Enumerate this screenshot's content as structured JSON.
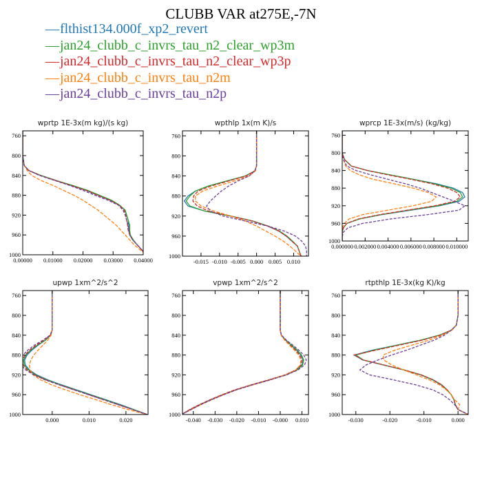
{
  "title": "CLUBB VAR at275E,-7N",
  "legend": [
    {
      "label": "flthist134.000f_xp2_revert",
      "color": "#1f77b4"
    },
    {
      "label": "jan24_clubb_c_invrs_tau_n2_clear_wp3m",
      "color": "#2ca02c"
    },
    {
      "label": "jan24_clubb_c_invrs_tau_n2_clear_wp3p",
      "color": "#d62728"
    },
    {
      "label": "jan24_clubb_c_invrs_tau_n2m",
      "color": "#ff7f0e"
    },
    {
      "label": "jan24_clubb_c_invrs_tau_n2p",
      "color": "#6a3d9a"
    }
  ],
  "chart_data": [
    {
      "type": "line",
      "title": "wprtp  1E-3x(m kg)/(s kg)",
      "xlim": [
        0,
        0.04
      ],
      "ylim": [
        1000,
        750
      ],
      "xticks": [
        0,
        0.01,
        0.02,
        0.03,
        0.04
      ],
      "xtick_labels": [
        "0.00000",
        "0.01000",
        "0.02000",
        "0.03000",
        "0.04000"
      ],
      "yticks": [
        760,
        800,
        840,
        880,
        920,
        960,
        1000
      ],
      "ytick_labels": [
        "760",
        "800",
        "840",
        "880",
        "920",
        "960",
        "1000"
      ],
      "y": [
        750,
        800,
        820,
        830,
        840,
        850,
        860,
        870,
        880,
        890,
        900,
        910,
        920,
        930,
        940,
        950,
        960,
        970,
        980,
        990,
        1000
      ],
      "series": [
        {
          "values": [
            0,
            0,
            0.0005,
            0.002,
            0.006,
            0.011,
            0.016,
            0.021,
            0.025,
            0.029,
            0.032,
            0.034,
            0.0345,
            0.035,
            0.0352,
            0.0352,
            0.0355,
            0.0365,
            0.038,
            0.0395,
            0.041
          ]
        },
        {
          "values": [
            0,
            0,
            0.0005,
            0.002,
            0.006,
            0.011,
            0.0165,
            0.0215,
            0.0255,
            0.0295,
            0.0322,
            0.034,
            0.0345,
            0.035,
            0.0355,
            0.0355,
            0.0357,
            0.0367,
            0.038,
            0.0395,
            0.041
          ]
        },
        {
          "values": [
            0,
            0,
            0.0005,
            0.002,
            0.0058,
            0.0108,
            0.016,
            0.021,
            0.025,
            0.029,
            0.032,
            0.0337,
            0.0342,
            0.0345,
            0.0348,
            0.035,
            0.0355,
            0.0365,
            0.038,
            0.0395,
            0.041
          ]
        },
        {
          "values": [
            0,
            0,
            0.0005,
            0.0015,
            0.003,
            0.006,
            0.01,
            0.0135,
            0.017,
            0.02,
            0.0225,
            0.025,
            0.027,
            0.029,
            0.031,
            0.0325,
            0.034,
            0.0355,
            0.037,
            0.039,
            0.041
          ]
        },
        {
          "values": [
            0,
            0,
            0.0005,
            0.002,
            0.0055,
            0.0105,
            0.0155,
            0.02,
            0.024,
            0.0283,
            0.0318,
            0.0333,
            0.034,
            0.0345,
            0.035,
            0.0352,
            0.0355,
            0.0365,
            0.038,
            0.0395,
            0.041
          ]
        }
      ]
    },
    {
      "type": "line",
      "title": "wpthlp  1x(m K)/s",
      "xlim": [
        -0.02,
        0.014
      ],
      "ylim": [
        1000,
        750
      ],
      "xticks": [
        -0.015,
        -0.01,
        -0.005,
        0,
        0.005,
        0.01
      ],
      "xtick_labels": [
        "-0.015",
        "-0.010",
        "-0.005",
        "0.000",
        "0.005",
        "0.010"
      ],
      "yticks": [
        760,
        800,
        840,
        880,
        920,
        960,
        1000
      ],
      "ytick_labels": [
        "760",
        "800",
        "840",
        "880",
        "920",
        "960",
        "1000"
      ],
      "y": [
        750,
        800,
        820,
        830,
        840,
        850,
        860,
        870,
        880,
        890,
        900,
        910,
        920,
        930,
        940,
        950,
        960,
        970,
        980,
        990,
        1000
      ],
      "series": [
        {
          "values": [
            0,
            0,
            0,
            -0.0005,
            -0.003,
            -0.008,
            -0.013,
            -0.0165,
            -0.0185,
            -0.0195,
            -0.0185,
            -0.014,
            -0.007,
            -0.001,
            0.003,
            0.006,
            0.008,
            0.0095,
            0.011,
            0.0115,
            0.012
          ]
        },
        {
          "values": [
            0,
            0,
            0,
            -0.0005,
            -0.003,
            -0.008,
            -0.013,
            -0.0165,
            -0.018,
            -0.019,
            -0.018,
            -0.014,
            -0.007,
            -0.001,
            0.0032,
            0.0062,
            0.0082,
            0.0097,
            0.011,
            0.0115,
            0.012
          ]
        },
        {
          "values": [
            0,
            0,
            0,
            -0.0005,
            -0.0028,
            -0.0075,
            -0.0122,
            -0.0158,
            -0.017,
            -0.0172,
            -0.016,
            -0.013,
            -0.007,
            -0.0012,
            0.003,
            0.006,
            0.008,
            0.0095,
            0.011,
            0.0115,
            0.012
          ]
        },
        {
          "values": [
            0,
            0,
            0,
            -0.0003,
            -0.002,
            -0.006,
            -0.0105,
            -0.0145,
            -0.0165,
            -0.0165,
            -0.015,
            -0.0115,
            -0.007,
            -0.003,
            0,
            0.0025,
            0.005,
            0.0072,
            0.009,
            0.0105,
            0.012
          ]
        },
        {
          "values": [
            0,
            0,
            0,
            -0.0005,
            -0.002,
            -0.005,
            -0.0075,
            -0.0095,
            -0.011,
            -0.0125,
            -0.0135,
            -0.0125,
            -0.009,
            -0.003,
            0.003,
            0.0075,
            0.0105,
            0.0122,
            0.0132,
            0.0135,
            0.0135
          ]
        }
      ]
    },
    {
      "type": "line",
      "title": "wprcp  1E-3x(m/s) (kg/kg)",
      "xlim": [
        0,
        0.011
      ],
      "ylim": [
        1000,
        750
      ],
      "xticks": [
        0,
        0.002,
        0.004,
        0.006,
        0.008,
        0.01
      ],
      "xtick_labels": [
        "0.000000",
        "0.002000",
        "0.004000",
        "0.006000",
        "0.008000",
        "0.010000"
      ],
      "yticks": [
        760,
        800,
        840,
        880,
        920,
        960,
        1000
      ],
      "ytick_labels": [
        "760",
        "800",
        "840",
        "880",
        "920",
        "960",
        "1000"
      ],
      "y": [
        750,
        800,
        815,
        830,
        840,
        850,
        860,
        870,
        880,
        890,
        900,
        910,
        920,
        930,
        940,
        950,
        960,
        970,
        980,
        990,
        1000
      ],
      "series": [
        {
          "values": [
            0,
            0,
            0.0002,
            0.0008,
            0.0022,
            0.0042,
            0.0062,
            0.0082,
            0.0097,
            0.0105,
            0.0107,
            0.0102,
            0.0085,
            0.006,
            0.0035,
            0.0015,
            0.0004,
            0.0001,
            0,
            0,
            0
          ]
        },
        {
          "values": [
            0,
            0,
            0.0002,
            0.0008,
            0.0022,
            0.0042,
            0.0062,
            0.008,
            0.0095,
            0.0103,
            0.0105,
            0.01,
            0.0083,
            0.0058,
            0.0034,
            0.0015,
            0.0004,
            0.0001,
            0,
            0,
            0
          ]
        },
        {
          "values": [
            0,
            0,
            0.0002,
            0.0008,
            0.0022,
            0.004,
            0.006,
            0.0078,
            0.0092,
            0.01,
            0.0103,
            0.0098,
            0.0081,
            0.0057,
            0.0033,
            0.0014,
            0.0004,
            0.0001,
            0,
            0,
            0
          ]
        },
        {
          "values": [
            0,
            0,
            0.0001,
            0.0003,
            0.0007,
            0.0015,
            0.0027,
            0.0045,
            0.0062,
            0.0075,
            0.0082,
            0.0078,
            0.0062,
            0.004,
            0.0018,
            0.0006,
            0.0002,
            0,
            0,
            0,
            0
          ]
        },
        {
          "values": [
            0,
            0,
            0.0001,
            0.0004,
            0.0012,
            0.0025,
            0.004,
            0.0055,
            0.0068,
            0.0078,
            0.0088,
            0.0098,
            0.0107,
            0.0102,
            0.0075,
            0.0042,
            0.0018,
            0.0005,
            0.0001,
            0,
            0
          ]
        }
      ]
    },
    {
      "type": "line",
      "title": "upwp  1xm^2/s^2",
      "xlim": [
        -0.008,
        0.026
      ],
      "ylim": [
        1000,
        750
      ],
      "xticks": [
        0,
        0.01,
        0.02
      ],
      "xtick_labels": [
        "0.000",
        "0.010",
        "0.020"
      ],
      "yticks": [
        760,
        800,
        840,
        880,
        920,
        960,
        1000
      ],
      "ytick_labels": [
        "760",
        "800",
        "840",
        "880",
        "920",
        "960",
        "1000"
      ],
      "y": [
        750,
        800,
        830,
        840,
        850,
        860,
        870,
        880,
        890,
        900,
        910,
        920,
        930,
        940,
        950,
        960,
        970,
        980,
        990,
        1000
      ],
      "series": [
        {
          "values": [
            0,
            0,
            0,
            -0.0004,
            -0.0018,
            -0.0038,
            -0.0055,
            -0.0068,
            -0.0075,
            -0.0073,
            -0.0062,
            -0.0042,
            -0.0012,
            0.0025,
            0.0065,
            0.0105,
            0.0145,
            0.0185,
            0.0222,
            0.0258
          ]
        },
        {
          "values": [
            0,
            0,
            0,
            -0.0004,
            -0.0019,
            -0.004,
            -0.0058,
            -0.0071,
            -0.0078,
            -0.0076,
            -0.0065,
            -0.0045,
            -0.0015,
            0.0022,
            0.0062,
            0.0102,
            0.0142,
            0.0182,
            0.022,
            0.0258
          ]
        },
        {
          "values": [
            0,
            0,
            0,
            -0.0005,
            -0.0022,
            -0.0043,
            -0.0061,
            -0.0074,
            -0.0081,
            -0.0079,
            -0.0068,
            -0.0048,
            -0.0018,
            0.0019,
            0.0059,
            0.0099,
            0.0139,
            0.0179,
            0.0218,
            0.0258
          ]
        },
        {
          "values": [
            0,
            0,
            0,
            -0.0003,
            -0.0012,
            -0.0025,
            -0.0038,
            -0.005,
            -0.0058,
            -0.0062,
            -0.006,
            -0.0052,
            -0.0032,
            -0.0002,
            0.0035,
            0.0075,
            0.0118,
            0.016,
            0.0205,
            0.0258
          ]
        },
        {
          "values": [
            0,
            0,
            0,
            -0.0006,
            -0.0025,
            -0.0048,
            -0.0066,
            -0.0079,
            -0.0086,
            -0.0084,
            -0.0072,
            -0.005,
            -0.002,
            0.0018,
            0.0058,
            0.0098,
            0.0138,
            0.0178,
            0.0218,
            0.0258
          ]
        }
      ]
    },
    {
      "type": "line",
      "title": "vpwp  1xm^2/s^2",
      "xlim": [
        -0.045,
        0.013
      ],
      "ylim": [
        1000,
        750
      ],
      "xticks": [
        -0.04,
        -0.03,
        -0.02,
        -0.01,
        0,
        0.01
      ],
      "xtick_labels": [
        "-0.040",
        "-0.030",
        "-0.020",
        "-0.010",
        "-0.000",
        "0.010"
      ],
      "yticks": [
        760,
        800,
        840,
        880,
        920,
        960,
        1000
      ],
      "ytick_labels": [
        "760",
        "800",
        "840",
        "880",
        "920",
        "960",
        "1000"
      ],
      "y": [
        750,
        800,
        830,
        840,
        850,
        860,
        870,
        880,
        890,
        900,
        910,
        920,
        930,
        940,
        950,
        960,
        970,
        980,
        990,
        1000
      ],
      "series": [
        {
          "values": [
            0,
            0,
            0,
            0.0005,
            0.0025,
            0.005,
            0.0075,
            0.0095,
            0.0105,
            0.01,
            0.0075,
            0.0025,
            -0.005,
            -0.013,
            -0.0205,
            -0.0265,
            -0.032,
            -0.037,
            -0.0415,
            -0.0455
          ]
        },
        {
          "values": [
            0,
            0,
            0,
            0.0005,
            0.0026,
            0.0052,
            0.0078,
            0.0098,
            0.0108,
            0.0103,
            0.0078,
            0.0028,
            -0.0048,
            -0.0128,
            -0.0203,
            -0.0263,
            -0.0318,
            -0.0368,
            -0.0413,
            -0.0455
          ]
        },
        {
          "values": [
            0,
            0,
            0,
            0.0004,
            0.0022,
            0.0045,
            0.007,
            0.009,
            0.01,
            0.0095,
            0.0072,
            0.0022,
            -0.0053,
            -0.0133,
            -0.0208,
            -0.0268,
            -0.0322,
            -0.0372,
            -0.0417,
            -0.0455
          ]
        },
        {
          "values": [
            0,
            0,
            0,
            0.0004,
            0.002,
            0.0042,
            0.0065,
            0.0085,
            0.0095,
            0.0092,
            0.0072,
            0.0025,
            -0.0045,
            -0.0125,
            -0.02,
            -0.026,
            -0.0315,
            -0.0365,
            -0.041,
            -0.0455
          ]
        },
        {
          "values": [
            0,
            0,
            0,
            0.0006,
            0.0028,
            0.0058,
            0.0085,
            0.0108,
            0.012,
            0.0112,
            0.0082,
            0.003,
            -0.0045,
            -0.0125,
            -0.02,
            -0.026,
            -0.0315,
            -0.0365,
            -0.041,
            -0.0455
          ]
        }
      ]
    },
    {
      "type": "line",
      "title": "rtpthlp  1E-3x(kg K)/kg",
      "xlim": [
        -0.034,
        0.003
      ],
      "ylim": [
        1000,
        750
      ],
      "xticks": [
        -0.03,
        -0.02,
        -0.01,
        0
      ],
      "xtick_labels": [
        "-0.030",
        "-0.020",
        "-0.010",
        "0.000"
      ],
      "yticks": [
        760,
        800,
        840,
        880,
        920,
        960,
        1000
      ],
      "ytick_labels": [
        "760",
        "800",
        "840",
        "880",
        "920",
        "960",
        "1000"
      ],
      "y": [
        750,
        800,
        820,
        830,
        840,
        850,
        860,
        870,
        880,
        890,
        900,
        910,
        920,
        930,
        940,
        950,
        960,
        970,
        980,
        990,
        1000
      ],
      "series": [
        {
          "values": [
            0,
            0,
            -0.0005,
            -0.002,
            -0.0055,
            -0.011,
            -0.018,
            -0.025,
            -0.0305,
            -0.028,
            -0.022,
            -0.016,
            -0.011,
            -0.0075,
            -0.005,
            -0.0033,
            -0.002,
            -0.0012,
            -0.0008,
            0,
            0.003
          ]
        },
        {
          "values": [
            0,
            0,
            -0.0005,
            -0.002,
            -0.0055,
            -0.0108,
            -0.0178,
            -0.0245,
            -0.03,
            -0.0278,
            -0.0218,
            -0.0158,
            -0.0108,
            -0.0073,
            -0.0048,
            -0.0032,
            -0.002,
            -0.0012,
            -0.0008,
            0,
            0.003
          ]
        },
        {
          "values": [
            0,
            0,
            -0.0005,
            -0.002,
            -0.0052,
            -0.0105,
            -0.0172,
            -0.024,
            -0.0305,
            -0.0278,
            -0.0218,
            -0.0158,
            -0.0108,
            -0.0073,
            -0.0048,
            -0.0032,
            -0.002,
            -0.0012,
            -0.0008,
            0,
            0.003
          ]
        },
        {
          "values": [
            0,
            0,
            -0.0005,
            -0.0018,
            -0.0045,
            -0.0085,
            -0.0135,
            -0.0185,
            -0.022,
            -0.0218,
            -0.0195,
            -0.016,
            -0.0122,
            -0.0085,
            -0.0055,
            -0.0035,
            -0.002,
            -0.001,
            0.0005,
            0,
            0.003
          ]
        },
        {
          "values": [
            0,
            0,
            -0.0005,
            -0.002,
            -0.004,
            -0.007,
            -0.011,
            -0.015,
            -0.0195,
            -0.0235,
            -0.027,
            -0.0288,
            -0.026,
            -0.019,
            -0.0125,
            -0.0075,
            -0.0045,
            -0.0025,
            -0.001,
            0,
            0.003
          ]
        }
      ]
    }
  ]
}
